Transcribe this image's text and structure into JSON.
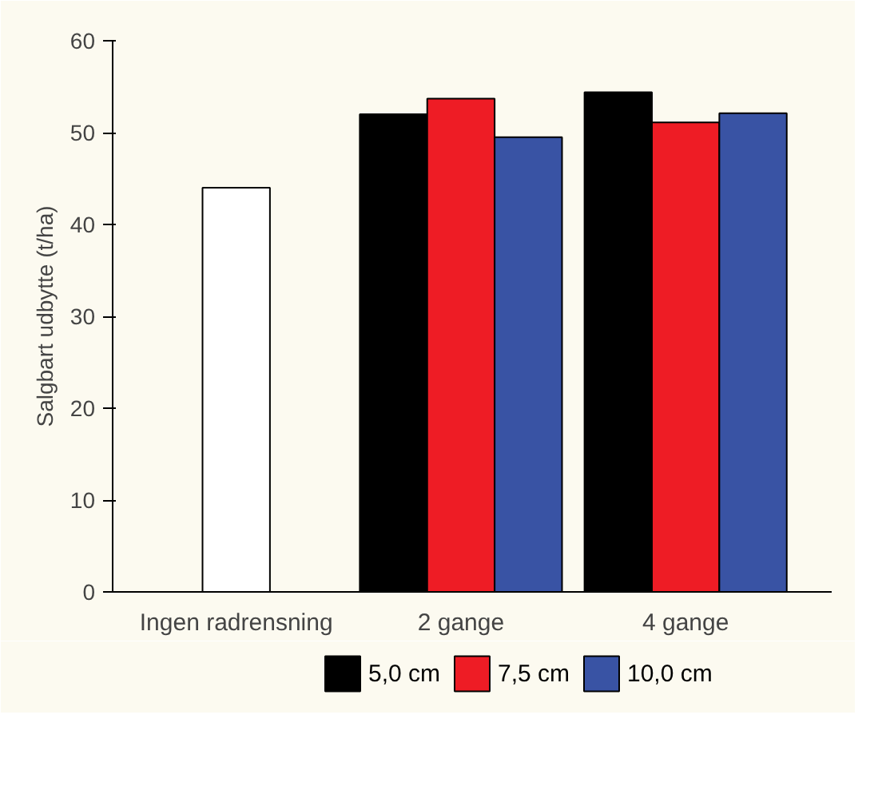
{
  "chart_data": {
    "type": "bar",
    "ylabel": "Salgbart udbytte (t/ha)",
    "categories": [
      "Ingen radrensning",
      "2 gange",
      "4 gange"
    ],
    "series": [
      {
        "color": "#ffffff",
        "values": [
          44,
          null,
          null
        ]
      },
      {
        "name": "5,0 cm",
        "color": "#000000",
        "values": [
          null,
          52,
          54.4
        ]
      },
      {
        "name": "7,5 cm",
        "color": "#ee1c25",
        "values": [
          null,
          53.7,
          51.1
        ]
      },
      {
        "name": "10,0 cm",
        "color": "#3953a4",
        "values": [
          null,
          49.5,
          52.1
        ]
      }
    ],
    "ylim": [
      0,
      60
    ],
    "yticks": [
      0,
      10,
      20,
      30,
      40,
      50,
      60
    ],
    "grid": false,
    "legend": "bottom"
  }
}
